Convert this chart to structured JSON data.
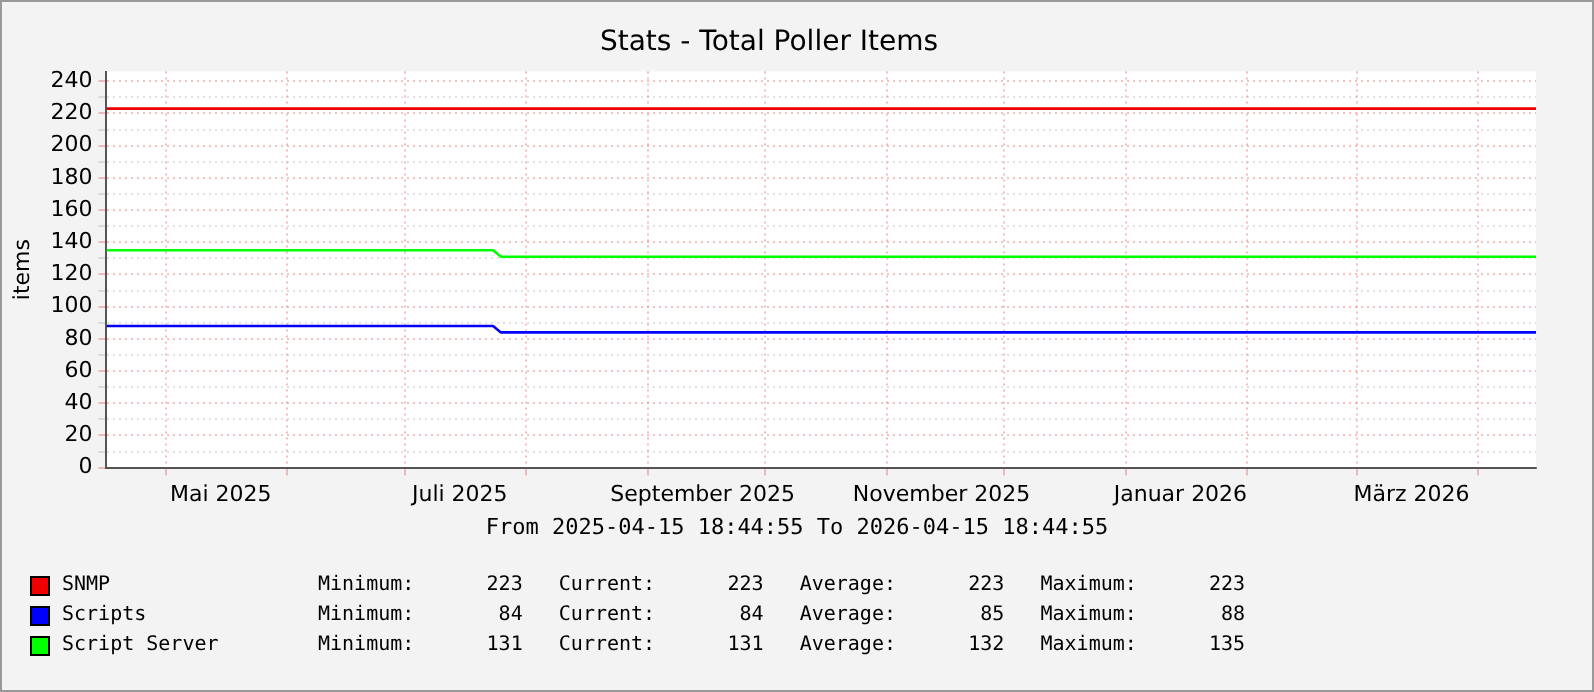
{
  "chart_data": {
    "type": "line",
    "title": "Stats - Total Poller Items",
    "ylabel": "items",
    "x": [
      "2025-04-15T18:44",
      "2025-07-23T12:00",
      "2025-07-25T12:00",
      "2026-04-15T18:44"
    ],
    "series": [
      {
        "name": "SNMP",
        "color": "#ee0000",
        "values": [
          223,
          223,
          223,
          223
        ]
      },
      {
        "name": "Scripts",
        "color": "#0000ff",
        "values": [
          88,
          88,
          84,
          84
        ]
      },
      {
        "name": "Script Server",
        "color": "#00ff00",
        "values": [
          135,
          135,
          131,
          131
        ]
      }
    ],
    "xlim": [
      "2025-04-15T18:44",
      "2026-04-15T18:44"
    ],
    "xticks": [
      {
        "value": "2025-05-01",
        "label": null
      },
      {
        "value": "2025-05-15",
        "label": "Mai 2025"
      },
      {
        "value": "2025-06-01",
        "label": null
      },
      {
        "value": "2025-07-01",
        "label": null
      },
      {
        "value": "2025-07-15",
        "label": "Juli 2025"
      },
      {
        "value": "2025-08-01",
        "label": null
      },
      {
        "value": "2025-09-01",
        "label": null
      },
      {
        "value": "2025-09-15",
        "label": "September 2025"
      },
      {
        "value": "2025-10-01",
        "label": null
      },
      {
        "value": "2025-11-01",
        "label": null
      },
      {
        "value": "2025-11-15",
        "label": "November 2025"
      },
      {
        "value": "2025-12-01",
        "label": null
      },
      {
        "value": "2026-01-01",
        "label": null
      },
      {
        "value": "2026-01-15",
        "label": "Januar 2026"
      },
      {
        "value": "2026-02-01",
        "label": null
      },
      {
        "value": "2026-03-01",
        "label": null
      },
      {
        "value": "2026-03-15",
        "label": "März 2026"
      },
      {
        "value": "2026-04-01",
        "label": null
      }
    ],
    "ylim": [
      0,
      246
    ],
    "yticks": [
      0,
      {
        "value": 10,
        "label": null
      },
      20,
      {
        "value": 30,
        "label": null
      },
      40,
      {
        "value": 50,
        "label": null
      },
      60,
      {
        "value": 70,
        "label": null
      },
      80,
      {
        "value": 90,
        "label": null
      },
      100,
      {
        "value": 110,
        "label": null
      },
      120,
      {
        "value": 130,
        "label": null
      },
      140,
      {
        "value": 150,
        "label": null
      },
      160,
      {
        "value": 170,
        "label": null
      },
      180,
      {
        "value": 190,
        "label": null
      },
      200,
      {
        "value": 210,
        "label": null
      },
      220,
      {
        "value": 230,
        "label": null
      },
      240
    ],
    "grid": true,
    "legend": "bottom",
    "marker": "none",
    "line_style": "solid",
    "annotations": [
      "From 2025-04-15 18:44:55 To 2026-04-15 18:44:55",
      "Minimum:      223   Current:      223   Average:      223   Maximum:      223",
      "Minimum:       84   Current:       84   Average:       85   Maximum:       88",
      "Minimum:      131   Current:      131   Average:      132   Maximum:      135"
    ]
  }
}
